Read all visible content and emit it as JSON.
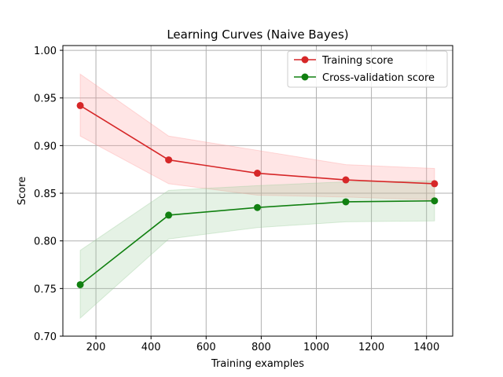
{
  "chart_data": {
    "type": "line",
    "title": "Learning Curves (Naive Bayes)",
    "xlabel": "Training examples",
    "ylabel": "Score",
    "xlim": [
      80,
      1495
    ],
    "ylim": [
      0.7,
      1.005
    ],
    "xticks": [
      200,
      400,
      600,
      800,
      1000,
      1200,
      1400
    ],
    "yticks": [
      0.7,
      0.75,
      0.8,
      0.85,
      0.9,
      0.95,
      1.0
    ],
    "xtick_labels": [
      "200",
      "400",
      "600",
      "800",
      "1000",
      "1200",
      "1400"
    ],
    "ytick_labels": [
      "0.70",
      "0.75",
      "0.80",
      "0.85",
      "0.90",
      "0.95",
      "1.00"
    ],
    "grid": true,
    "legend_position": "top-right",
    "x": [
      143,
      464,
      786,
      1107,
      1429
    ],
    "series": [
      {
        "name": "Training score",
        "color": "#d62728",
        "fill_color": "#ff9999",
        "values": [
          0.942,
          0.885,
          0.871,
          0.864,
          0.86
        ],
        "band_upper": [
          0.975,
          0.91,
          0.895,
          0.88,
          0.876
        ],
        "band_lower": [
          0.91,
          0.86,
          0.848,
          0.846,
          0.843
        ]
      },
      {
        "name": "Cross-validation score",
        "color": "#118011",
        "fill_color": "#99cc99",
        "values": [
          0.754,
          0.827,
          0.835,
          0.841,
          0.842
        ],
        "band_upper": [
          0.79,
          0.853,
          0.858,
          0.862,
          0.863
        ],
        "band_lower": [
          0.719,
          0.802,
          0.814,
          0.82,
          0.821
        ]
      }
    ]
  }
}
